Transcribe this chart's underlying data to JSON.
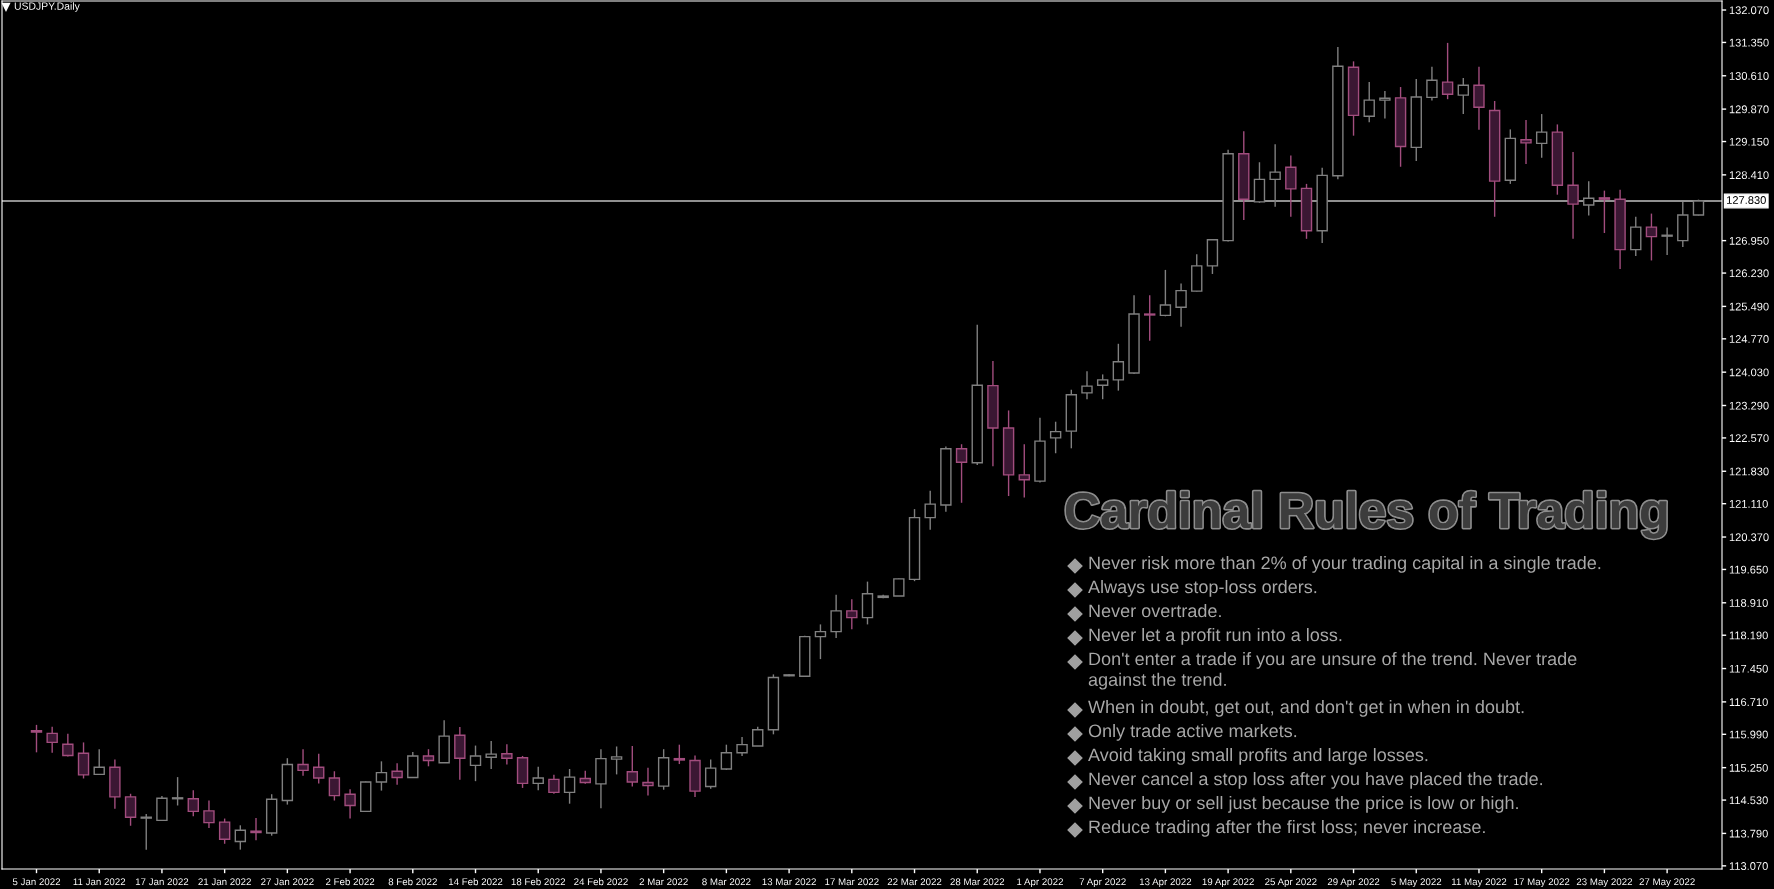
{
  "chart_data": {
    "type": "candlestick",
    "title": "USDJPY.Daily",
    "categories": [
      "5 Jan 2022",
      null,
      null,
      null,
      "11 Jan 2022",
      null,
      null,
      null,
      "17 Jan 2022",
      null,
      null,
      null,
      "21 Jan 2022",
      null,
      null,
      null,
      "27 Jan 2022",
      null,
      null,
      null,
      "2 Feb 2022",
      null,
      null,
      null,
      "8 Feb 2022",
      null,
      null,
      null,
      "14 Feb 2022",
      null,
      null,
      null,
      "18 Feb 2022",
      null,
      null,
      null,
      "24 Feb 2022",
      null,
      null,
      null,
      "2 Mar 2022",
      null,
      null,
      null,
      "8 Mar 2022",
      null,
      null,
      null,
      "13 Mar 2022",
      null,
      null,
      null,
      "17 Mar 2022",
      null,
      null,
      null,
      "22 Mar 2022",
      null,
      null,
      null,
      "28 Mar 2022",
      null,
      null,
      null,
      "1 Apr 2022",
      null,
      null,
      null,
      "7 Apr 2022",
      null,
      null,
      null,
      "13 Apr 2022",
      null,
      null,
      null,
      "19 Apr 2022",
      null,
      null,
      null,
      "25 Apr 2022",
      null,
      null,
      null,
      "29 Apr 2022",
      null,
      null,
      null,
      "5 May 2022",
      null,
      null,
      null,
      "11 May 2022",
      null,
      null,
      null,
      "17 May 2022",
      null,
      null,
      null,
      "23 May 2022",
      null,
      null,
      null,
      "27 May 2022",
      null,
      null
    ],
    "ohlc": [
      [
        116.07,
        116.2,
        115.59,
        116.04
      ],
      [
        116.01,
        116.16,
        115.58,
        115.81
      ],
      [
        115.77,
        116.0,
        115.5,
        115.52
      ],
      [
        115.57,
        115.81,
        115.01,
        115.09
      ],
      [
        115.1,
        115.66,
        115.09,
        115.26
      ],
      [
        115.26,
        115.43,
        114.34,
        114.6
      ],
      [
        114.6,
        114.67,
        113.96,
        114.15
      ],
      [
        114.13,
        114.22,
        113.43,
        114.15
      ],
      [
        114.08,
        114.62,
        114.08,
        114.57
      ],
      [
        114.56,
        115.04,
        114.41,
        114.58
      ],
      [
        114.56,
        114.75,
        114.17,
        114.28
      ],
      [
        114.29,
        114.52,
        113.91,
        114.03
      ],
      [
        114.04,
        114.12,
        113.56,
        113.66
      ],
      [
        113.61,
        113.97,
        113.43,
        113.86
      ],
      [
        113.84,
        114.13,
        113.64,
        113.81
      ],
      [
        113.8,
        114.66,
        113.74,
        114.55
      ],
      [
        114.52,
        115.46,
        114.43,
        115.32
      ],
      [
        115.32,
        115.66,
        115.07,
        115.19
      ],
      [
        115.26,
        115.56,
        114.9,
        115.02
      ],
      [
        115.02,
        115.17,
        114.52,
        114.63
      ],
      [
        114.66,
        114.77,
        114.12,
        114.41
      ],
      [
        114.28,
        114.94,
        114.28,
        114.93
      ],
      [
        114.93,
        115.39,
        114.74,
        115.14
      ],
      [
        115.17,
        115.35,
        114.87,
        115.03
      ],
      [
        115.03,
        115.6,
        115.02,
        115.51
      ],
      [
        115.51,
        115.66,
        115.28,
        115.41
      ],
      [
        115.36,
        116.3,
        115.36,
        115.95
      ],
      [
        115.97,
        116.15,
        114.98,
        115.46
      ],
      [
        115.3,
        115.74,
        114.95,
        115.51
      ],
      [
        115.48,
        115.84,
        115.22,
        115.55
      ],
      [
        115.56,
        115.77,
        115.32,
        115.46
      ],
      [
        115.47,
        115.51,
        114.8,
        114.9
      ],
      [
        114.9,
        115.27,
        114.75,
        115.02
      ],
      [
        114.99,
        115.09,
        114.67,
        114.7
      ],
      [
        114.7,
        115.22,
        114.45,
        115.04
      ],
      [
        115.01,
        115.18,
        114.89,
        114.92
      ],
      [
        114.89,
        115.66,
        114.35,
        115.45
      ],
      [
        115.44,
        115.72,
        115.1,
        115.49
      ],
      [
        115.16,
        115.73,
        114.83,
        114.93
      ],
      [
        114.92,
        115.25,
        114.63,
        114.85
      ],
      [
        114.84,
        115.66,
        114.76,
        115.47
      ],
      [
        115.45,
        115.76,
        115.33,
        115.42
      ],
      [
        115.41,
        115.52,
        114.6,
        114.73
      ],
      [
        114.83,
        115.43,
        114.78,
        115.24
      ],
      [
        115.22,
        115.76,
        115.2,
        115.58
      ],
      [
        115.58,
        115.93,
        115.51,
        115.76
      ],
      [
        115.73,
        116.16,
        115.73,
        116.09
      ],
      [
        116.09,
        117.32,
        115.99,
        117.25
      ],
      [
        117.29,
        117.33,
        117.28,
        117.31
      ],
      [
        117.28,
        118.18,
        117.27,
        118.16
      ],
      [
        118.16,
        118.43,
        117.66,
        118.27
      ],
      [
        118.27,
        119.09,
        118.13,
        118.73
      ],
      [
        118.73,
        118.99,
        118.32,
        118.58
      ],
      [
        118.58,
        119.38,
        118.43,
        119.11
      ],
      [
        119.03,
        119.09,
        119.01,
        119.06
      ],
      [
        119.06,
        119.45,
        119.06,
        119.44
      ],
      [
        119.43,
        120.99,
        119.39,
        120.8
      ],
      [
        120.8,
        121.4,
        120.53,
        121.1
      ],
      [
        121.08,
        122.38,
        120.93,
        122.33
      ],
      [
        122.33,
        122.43,
        121.13,
        122.03
      ],
      [
        122.02,
        125.08,
        121.97,
        123.74
      ],
      [
        123.73,
        124.28,
        121.94,
        122.79
      ],
      [
        122.79,
        123.18,
        121.28,
        121.75
      ],
      [
        121.75,
        122.43,
        121.25,
        121.64
      ],
      [
        121.61,
        123.02,
        121.58,
        122.5
      ],
      [
        122.57,
        122.93,
        122.23,
        122.71
      ],
      [
        122.72,
        123.64,
        122.34,
        123.53
      ],
      [
        123.57,
        124.05,
        123.43,
        123.72
      ],
      [
        123.74,
        123.98,
        123.43,
        123.86
      ],
      [
        123.86,
        124.66,
        123.62,
        124.26
      ],
      [
        124.01,
        125.74,
        123.99,
        125.32
      ],
      [
        125.32,
        125.74,
        124.73,
        125.3
      ],
      [
        125.29,
        126.3,
        125.27,
        125.52
      ],
      [
        125.47,
        126.0,
        125.04,
        125.84
      ],
      [
        125.83,
        126.65,
        125.82,
        126.39
      ],
      [
        126.39,
        126.98,
        126.21,
        126.97
      ],
      [
        126.95,
        128.97,
        126.93,
        128.88
      ],
      [
        128.88,
        129.38,
        127.41,
        127.87
      ],
      [
        127.81,
        128.69,
        127.79,
        128.31
      ],
      [
        128.31,
        129.09,
        127.7,
        128.47
      ],
      [
        128.58,
        128.84,
        127.48,
        128.1
      ],
      [
        128.11,
        128.21,
        126.99,
        127.17
      ],
      [
        127.17,
        128.57,
        126.9,
        128.4
      ],
      [
        128.39,
        131.25,
        128.31,
        130.82
      ],
      [
        130.8,
        130.93,
        129.28,
        129.73
      ],
      [
        129.71,
        130.47,
        129.58,
        130.07
      ],
      [
        130.07,
        130.27,
        129.66,
        130.11
      ],
      [
        130.12,
        130.36,
        128.59,
        129.04
      ],
      [
        129.02,
        130.54,
        128.72,
        130.14
      ],
      [
        130.13,
        130.81,
        130.06,
        130.51
      ],
      [
        130.47,
        131.34,
        130.09,
        130.2
      ],
      [
        130.18,
        130.56,
        129.76,
        130.4
      ],
      [
        130.4,
        130.81,
        129.41,
        129.91
      ],
      [
        129.84,
        130.05,
        127.48,
        128.27
      ],
      [
        128.29,
        129.42,
        128.21,
        129.22
      ],
      [
        129.19,
        129.63,
        128.65,
        129.12
      ],
      [
        129.11,
        129.76,
        128.79,
        129.36
      ],
      [
        129.36,
        129.53,
        127.97,
        128.18
      ],
      [
        128.18,
        128.92,
        126.99,
        127.76
      ],
      [
        127.74,
        128.27,
        127.51,
        127.89
      ],
      [
        127.9,
        128.06,
        127.12,
        127.87
      ],
      [
        127.87,
        128.08,
        126.32,
        126.75
      ],
      [
        126.75,
        127.48,
        126.61,
        127.25
      ],
      [
        127.25,
        127.55,
        126.51,
        127.04
      ],
      [
        127.05,
        127.24,
        126.63,
        127.07
      ],
      [
        126.95,
        127.81,
        126.81,
        127.52
      ],
      [
        127.52,
        127.86,
        127.51,
        127.83
      ]
    ],
    "ylim": [
      113.0,
      132.27
    ],
    "yticks": [
      {
        "value": 132.07,
        "label": "132.070"
      },
      {
        "value": 131.35,
        "label": "131.350"
      },
      {
        "value": 130.61,
        "label": "130.610"
      },
      {
        "value": 129.87,
        "label": "129.870"
      },
      {
        "value": 129.15,
        "label": "129.150"
      },
      {
        "value": 128.41,
        "label": "128.410"
      },
      {
        "value": 126.95,
        "label": "126.950"
      },
      {
        "value": 126.23,
        "label": "126.230"
      },
      {
        "value": 125.49,
        "label": "125.490"
      },
      {
        "value": 124.77,
        "label": "124.770"
      },
      {
        "value": 124.03,
        "label": "124.030"
      },
      {
        "value": 123.29,
        "label": "123.290"
      },
      {
        "value": 122.57,
        "label": "122.570"
      },
      {
        "value": 121.83,
        "label": "121.830"
      },
      {
        "value": 121.11,
        "label": "121.110"
      },
      {
        "value": 120.37,
        "label": "120.370"
      },
      {
        "value": 119.65,
        "label": "119.650"
      },
      {
        "value": 118.91,
        "label": "118.910"
      },
      {
        "value": 118.19,
        "label": "118.190"
      },
      {
        "value": 117.45,
        "label": "117.450"
      },
      {
        "value": 116.71,
        "label": "116.710"
      },
      {
        "value": 115.99,
        "label": "115.990"
      },
      {
        "value": 115.25,
        "label": "115.250"
      },
      {
        "value": 114.53,
        "label": "114.530"
      },
      {
        "value": 113.79,
        "label": "113.790"
      },
      {
        "value": 113.07,
        "label": "113.070"
      }
    ],
    "ref_lines": [
      {
        "axis": "y",
        "value": 127.83,
        "label": "127.830",
        "color": "#c0c0c0"
      }
    ],
    "annotations": [
      "Cardinal Rules of Trading",
      "Never risk more than 2% of your trading capital in a single trade.",
      "Always use stop-loss orders.",
      "Never overtrade.",
      "Never let a profit run into a loss.",
      "Don't enter a trade if you are unsure of the trend. Never trade\nagainst the trend.",
      "When in doubt, get out, and don't get in when in doubt.",
      "Only trade active markets.",
      "Avoid taking small profits and large losses.",
      "Never cancel a stop loss after you have placed the trade.",
      "Never buy or sell just because the price is low or high.",
      "Reduce trading after the first loss; never increase."
    ]
  }
}
